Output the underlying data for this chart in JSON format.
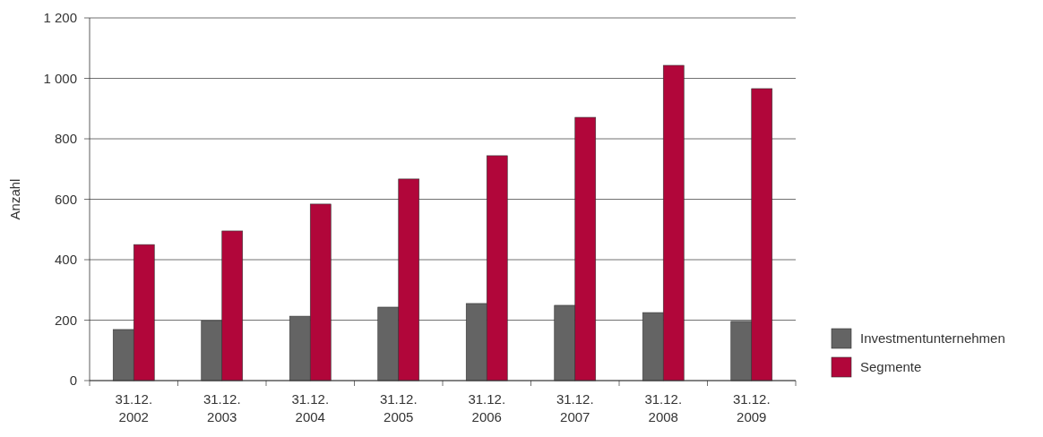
{
  "chart_data": {
    "type": "bar",
    "ylabel": "Anzahl",
    "categories": [
      "31.12. 2002",
      "31.12. 2003",
      "31.12. 2004",
      "31.12. 2005",
      "31.12. 2006",
      "31.12. 2007",
      "31.12. 2008",
      "31.12. 2009"
    ],
    "series": [
      {
        "name": "Investmentunternehmen",
        "color": "#646464",
        "values": [
          169,
          198,
          213,
          243,
          255,
          249,
          225,
          196
        ]
      },
      {
        "name": "Segmente",
        "color": "#b1063a",
        "values": [
          450,
          495,
          584,
          667,
          744,
          871,
          1043,
          966
        ]
      }
    ],
    "ylim": [
      0,
      1200
    ],
    "yticks": [
      0,
      200,
      400,
      600,
      800,
      {
        "value": 1000,
        "label": "1 000"
      },
      {
        "value": 1200,
        "label": "1 200"
      }
    ],
    "grid": "y",
    "legend": "right"
  }
}
